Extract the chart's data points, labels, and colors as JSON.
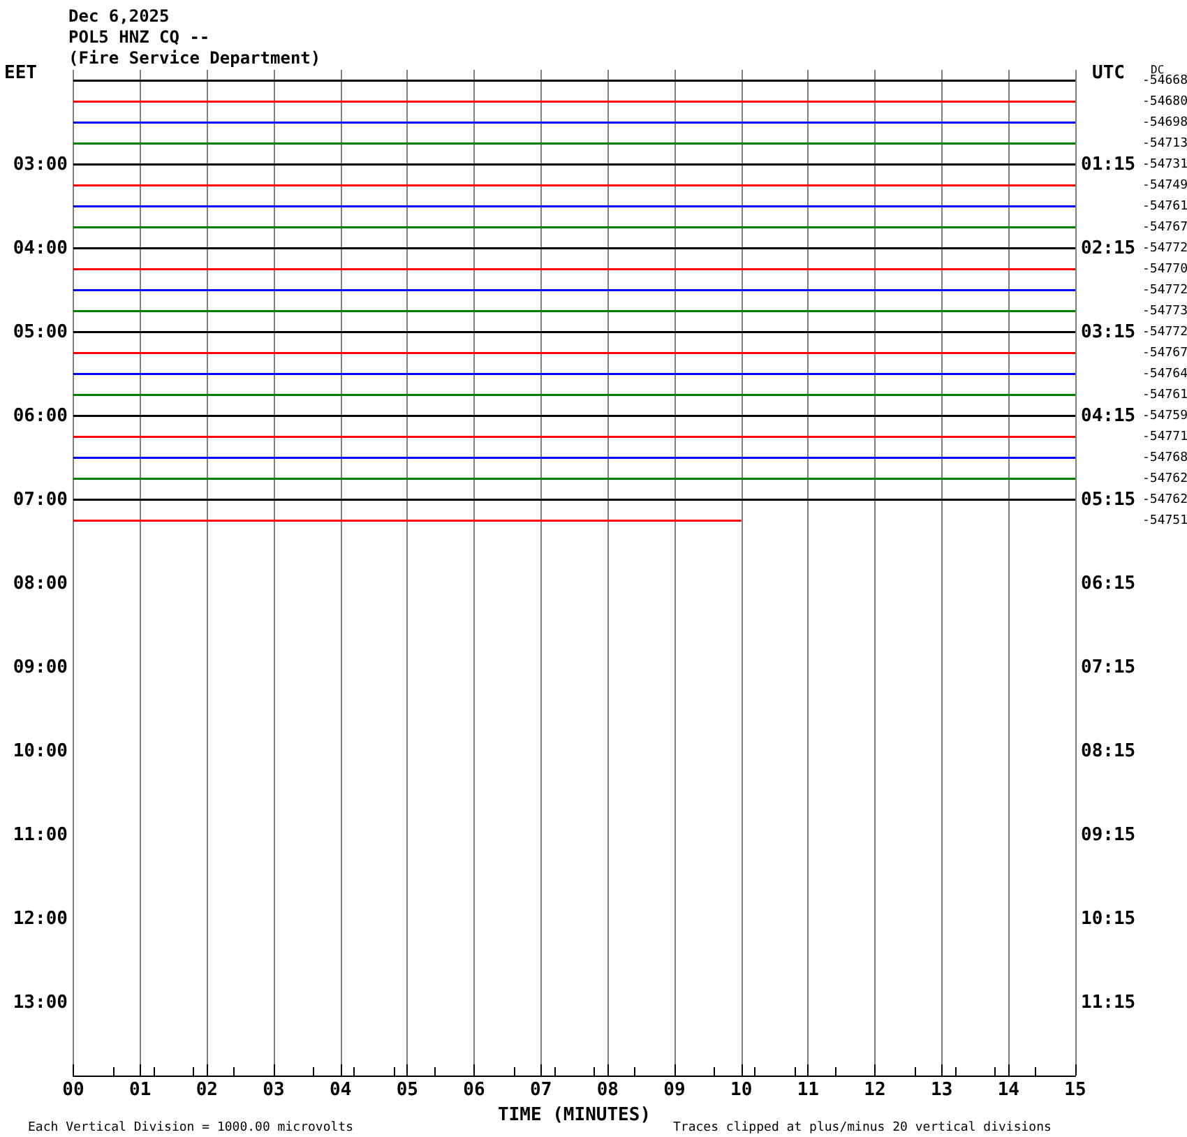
{
  "chart_data": {
    "type": "line",
    "title": "Dec 6,2025",
    "subtitle": "POL5 HNZ CQ --\n(Fire Service Department)",
    "xlabel": "TIME (MINUTES)",
    "ylabel": "EET",
    "y2label": "UTC",
    "xlim": [
      0,
      15
    ],
    "xticks": [
      {
        "value": 0,
        "label": "00"
      },
      {
        "value": 1,
        "label": "01"
      },
      {
        "value": 2,
        "label": "02"
      },
      {
        "value": 3,
        "label": "03"
      },
      {
        "value": 4,
        "label": "04"
      },
      {
        "value": 5,
        "label": "05"
      },
      {
        "value": 6,
        "label": "06"
      },
      {
        "value": 7,
        "label": "07"
      },
      {
        "value": 8,
        "label": "08"
      },
      {
        "value": 9,
        "label": "09"
      },
      {
        "value": 10,
        "label": "10"
      },
      {
        "value": 11,
        "label": "11"
      },
      {
        "value": 12,
        "label": "12"
      },
      {
        "value": 13,
        "label": "13"
      },
      {
        "value": 14,
        "label": "14"
      },
      {
        "value": 15,
        "label": "15"
      }
    ],
    "ylim": [
      13.87,
      1.87
    ],
    "yticks": [
      {
        "value": 3,
        "label": "03:00"
      },
      {
        "value": 4,
        "label": "04:00"
      },
      {
        "value": 5,
        "label": "05:00"
      },
      {
        "value": 6,
        "label": "06:00"
      },
      {
        "value": 7,
        "label": "07:00"
      },
      {
        "value": 8,
        "label": "08:00"
      },
      {
        "value": 9,
        "label": "09:00"
      },
      {
        "value": 10,
        "label": "10:00"
      },
      {
        "value": 11,
        "label": "11:00"
      },
      {
        "value": 12,
        "label": "12:00"
      },
      {
        "value": 13,
        "label": "13:00"
      }
    ],
    "y2lim": [
      12.12,
      0.12
    ],
    "y2ticks": [
      {
        "value": 1.25,
        "label": "01:15"
      },
      {
        "value": 2.25,
        "label": "02:15"
      },
      {
        "value": 3.25,
        "label": "03:15"
      },
      {
        "value": 4.25,
        "label": "04:15"
      },
      {
        "value": 5.25,
        "label": "05:15"
      },
      {
        "value": 6.25,
        "label": "06:15"
      },
      {
        "value": 7.25,
        "label": "07:15"
      },
      {
        "value": 8.25,
        "label": "08:15"
      },
      {
        "value": 9.25,
        "label": "09:15"
      },
      {
        "value": 10.25,
        "label": "10:15"
      },
      {
        "value": 11.25,
        "label": "11:15"
      }
    ],
    "grid": "x",
    "marker": "none",
    "line_style": "solid",
    "series": [
      {
        "color": "#000000",
        "x": [
          0,
          15
        ],
        "values": [
          2,
          2
        ]
      },
      {
        "color": "#ff0000",
        "x": [
          0,
          15
        ],
        "values": [
          2.25,
          2.25
        ]
      },
      {
        "color": "#0000ff",
        "x": [
          0,
          15
        ],
        "values": [
          2.5,
          2.5
        ]
      },
      {
        "color": "#008000",
        "x": [
          0,
          15
        ],
        "values": [
          2.75,
          2.75
        ]
      },
      {
        "color": "#000000",
        "x": [
          0,
          15
        ],
        "values": [
          3,
          3
        ]
      },
      {
        "color": "#ff0000",
        "x": [
          0,
          15
        ],
        "values": [
          3.25,
          3.25
        ]
      },
      {
        "color": "#0000ff",
        "x": [
          0,
          15
        ],
        "values": [
          3.5,
          3.5
        ]
      },
      {
        "color": "#008000",
        "x": [
          0,
          15
        ],
        "values": [
          3.75,
          3.75
        ]
      },
      {
        "color": "#000000",
        "x": [
          0,
          15
        ],
        "values": [
          4,
          4
        ]
      },
      {
        "color": "#ff0000",
        "x": [
          0,
          15
        ],
        "values": [
          4.25,
          4.25
        ]
      },
      {
        "color": "#0000ff",
        "x": [
          0,
          15
        ],
        "values": [
          4.5,
          4.5
        ]
      },
      {
        "color": "#008000",
        "x": [
          0,
          15
        ],
        "values": [
          4.75,
          4.75
        ]
      },
      {
        "color": "#000000",
        "x": [
          0,
          15
        ],
        "values": [
          5,
          5
        ]
      },
      {
        "color": "#ff0000",
        "x": [
          0,
          15
        ],
        "values": [
          5.25,
          5.25
        ]
      },
      {
        "color": "#0000ff",
        "x": [
          0,
          15
        ],
        "values": [
          5.5,
          5.5
        ]
      },
      {
        "color": "#008000",
        "x": [
          0,
          15
        ],
        "values": [
          5.75,
          5.75
        ]
      },
      {
        "color": "#000000",
        "x": [
          0,
          15
        ],
        "values": [
          6,
          6
        ]
      },
      {
        "color": "#ff0000",
        "x": [
          0,
          15
        ],
        "values": [
          6.25,
          6.25
        ]
      },
      {
        "color": "#0000ff",
        "x": [
          0,
          15
        ],
        "values": [
          6.5,
          6.5
        ]
      },
      {
        "color": "#008000",
        "x": [
          0,
          15
        ],
        "values": [
          6.75,
          6.75
        ]
      },
      {
        "color": "#000000",
        "x": [
          0,
          15
        ],
        "values": [
          7,
          7
        ]
      },
      {
        "color": "#ff0000",
        "x": [
          0,
          10
        ],
        "values": [
          7.25,
          7.25
        ]
      }
    ],
    "annotations": [
      "Each Vertical Division = 1000.00 microvolts",
      "Traces clipped at plus/minus 20 vertical divisions",
      "DC",
      "-54668",
      "-54680",
      "-54698",
      "-54713",
      "-54731",
      "-54749",
      "-54761",
      "-54767",
      "-54772",
      "-54770",
      "-54772",
      "-54773",
      "-54772",
      "-54767",
      "-54764",
      "-54761",
      "-54759",
      "-54771",
      "-54768",
      "-54762",
      "-54762",
      "-54751"
    ]
  }
}
